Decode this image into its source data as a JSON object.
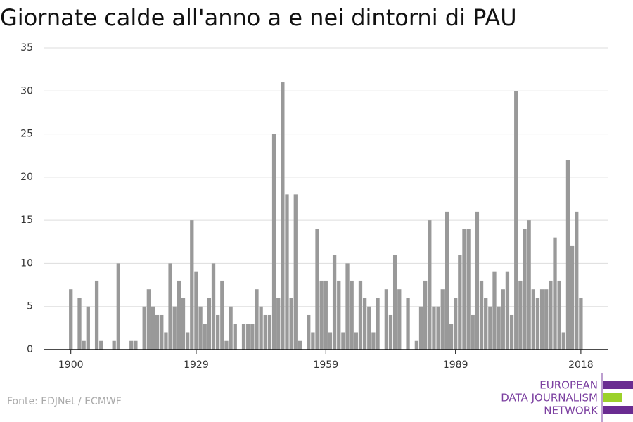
{
  "chart_data": {
    "type": "bar",
    "title": "Giornate calde all'anno a e nei dintorni di PAU",
    "source": "Fonte: EDJNet / ECMWF",
    "color": "#999999",
    "x": [
      1900,
      1901,
      1902,
      1903,
      1904,
      1905,
      1906,
      1907,
      1908,
      1909,
      1910,
      1911,
      1912,
      1913,
      1914,
      1915,
      1916,
      1917,
      1918,
      1919,
      1920,
      1921,
      1922,
      1923,
      1924,
      1925,
      1926,
      1927,
      1928,
      1929,
      1930,
      1931,
      1932,
      1933,
      1934,
      1935,
      1936,
      1937,
      1938,
      1939,
      1940,
      1941,
      1942,
      1943,
      1944,
      1945,
      1946,
      1947,
      1948,
      1949,
      1950,
      1951,
      1952,
      1953,
      1954,
      1955,
      1956,
      1957,
      1958,
      1959,
      1960,
      1961,
      1962,
      1963,
      1964,
      1965,
      1966,
      1967,
      1968,
      1969,
      1970,
      1971,
      1972,
      1973,
      1974,
      1975,
      1976,
      1977,
      1978,
      1979,
      1980,
      1981,
      1982,
      1983,
      1984,
      1985,
      1986,
      1987,
      1988,
      1989,
      1990,
      1991,
      1992,
      1993,
      1994,
      1995,
      1996,
      1997,
      1998,
      1999,
      2000,
      2001,
      2002,
      2003,
      2004,
      2005,
      2006,
      2007,
      2008,
      2009,
      2010,
      2011,
      2012,
      2013,
      2014,
      2015,
      2016,
      2017,
      2018
    ],
    "values": [
      7,
      0,
      6,
      1,
      5,
      0,
      8,
      1,
      0,
      0,
      1,
      10,
      0,
      0,
      1,
      1,
      0,
      5,
      7,
      5,
      4,
      4,
      2,
      10,
      5,
      8,
      6,
      2,
      15,
      9,
      5,
      3,
      6,
      10,
      4,
      8,
      1,
      5,
      3,
      0,
      3,
      3,
      3,
      7,
      5,
      4,
      4,
      25,
      6,
      31,
      18,
      6,
      18,
      1,
      0,
      4,
      2,
      14,
      8,
      8,
      2,
      11,
      8,
      2,
      10,
      8,
      2,
      8,
      6,
      5,
      2,
      6,
      0,
      7,
      4,
      11,
      7,
      0,
      6,
      0,
      1,
      5,
      8,
      15,
      5,
      5,
      7,
      16,
      3,
      6,
      11,
      14,
      14,
      4,
      16,
      8,
      6,
      5,
      9,
      5,
      7,
      9,
      4,
      30,
      8,
      14,
      15,
      7,
      6,
      7,
      7,
      8,
      13,
      8,
      2,
      22,
      12,
      16,
      6
    ],
    "xlim": [
      1893.7,
      2024.2
    ],
    "xticks": [
      1900,
      1929,
      1959,
      1989,
      2018
    ],
    "ylim": [
      0,
      35
    ],
    "yticks": [
      0,
      5,
      10,
      15,
      20,
      25,
      30,
      35
    ],
    "grid": true
  },
  "logo": {
    "lines": [
      "EUROPEAN",
      "DATA JOURNALISM",
      "NETWORK"
    ]
  }
}
